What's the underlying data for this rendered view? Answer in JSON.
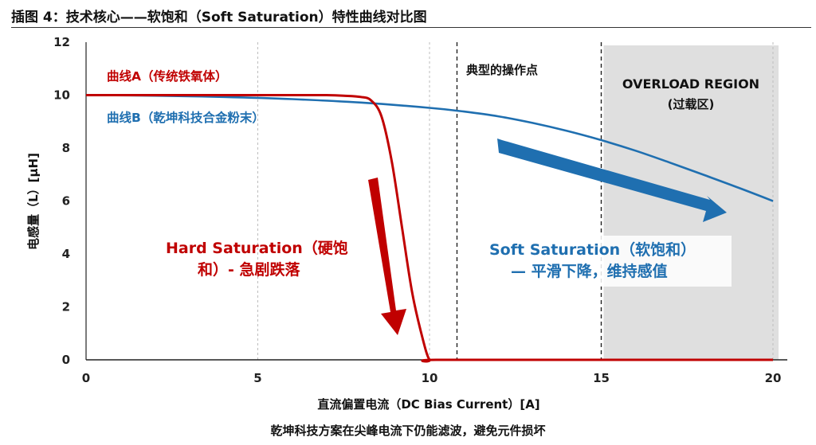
{
  "figure": {
    "title": "插图 4：技术核心——软饱和（Soft Saturation）特性曲线对比图",
    "caption": "乾坤科技方案在尖峰电流下仍能滤波，避免元件损坏"
  },
  "chart_data": {
    "type": "line",
    "xlabel": "直流偏置电流（DC Bias Current）[A]",
    "ylabel": "电感量（L）[μH]",
    "xlim": [
      0,
      20
    ],
    "ylim": [
      0,
      12
    ],
    "xticks": [
      "0",
      "5",
      "10",
      "15",
      "20"
    ],
    "yticks": [
      "0",
      "2",
      "4",
      "6",
      "8",
      "10",
      "12"
    ],
    "grid": "vertical dashed",
    "series": [
      {
        "name": "曲线A（传统铁氧体）",
        "color": "#c00000",
        "x": [
          0,
          2,
          4,
          6,
          7,
          7.5,
          8,
          8.3,
          8.6,
          8.9,
          9.2,
          9.5,
          9.8,
          10.0,
          10.2,
          15,
          20
        ],
        "y": [
          10,
          10,
          10,
          10,
          10,
          9.98,
          9.93,
          9.8,
          9.2,
          7.5,
          5.0,
          2.5,
          0.8,
          0.0,
          0.0,
          0.0,
          0.0
        ]
      },
      {
        "name": "曲线B（乾坤科技合金粉末）",
        "color": "#1f6fb0",
        "x": [
          0,
          2,
          4,
          6,
          8,
          10,
          11,
          12,
          13,
          14,
          15,
          16,
          17,
          18,
          19,
          20
        ],
        "y": [
          10.0,
          9.98,
          9.93,
          9.85,
          9.72,
          9.52,
          9.38,
          9.2,
          8.95,
          8.65,
          8.3,
          7.9,
          7.45,
          6.98,
          6.5,
          6.0
        ]
      }
    ],
    "annotations": {
      "typical_point": {
        "label": "典型的操作点",
        "x": 10.8
      },
      "overload_region": {
        "label_line1": "OVERLOAD REGION",
        "label_line2": "(过载区)",
        "x_start": 15,
        "x_end": 20
      },
      "hard_saturation": {
        "line1": "Hard Saturation（硬饱",
        "line2": "和）- 急剧跌落",
        "color": "#c00000"
      },
      "soft_saturation": {
        "line1": "Soft Saturation（软饱和）",
        "line2": "— 平滑下降，维持感值",
        "color": "#1f6fb0"
      }
    }
  }
}
